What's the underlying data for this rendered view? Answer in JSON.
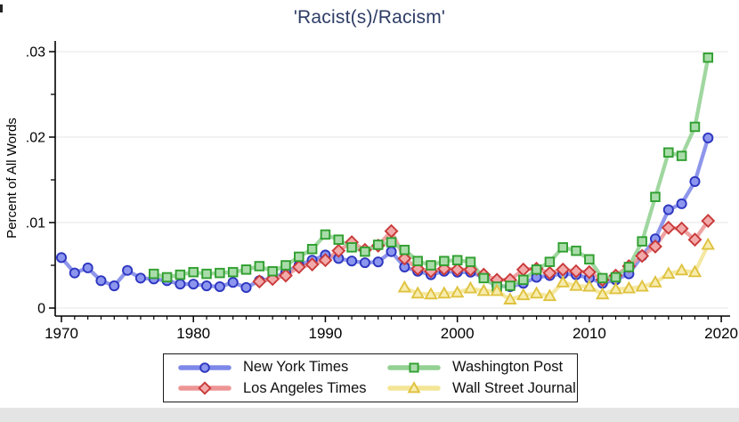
{
  "title": {
    "text": "'Racist(s)/Racism'",
    "color": "#2e3d66"
  },
  "y_axis_label": "Percent of All Words",
  "colors": {
    "title": "#2e3d66",
    "axis": "#000000",
    "gridline": "#ebebeb",
    "legend_border": "#1a1a1a",
    "background": "#ffffff",
    "bottom_strip": "#e4e4e4"
  },
  "chart_data": {
    "type": "line",
    "title": "'Racist(s)/Racism'",
    "xlabel": "",
    "ylabel": "Percent of All Words",
    "xlim": [
      1969.5,
      2020.6
    ],
    "ylim": [
      0,
      0.0313
    ],
    "x_ticks": [
      1970,
      1980,
      1990,
      2000,
      2010,
      2020
    ],
    "x_minor_tick_step": 1,
    "y_ticks": [
      0,
      0.01,
      0.02,
      0.03
    ],
    "y_tick_labels": [
      "0",
      ".01",
      ".02",
      ".03"
    ],
    "y_minor_ticks": [
      0.005,
      0.015,
      0.025
    ],
    "grid": "horizontal",
    "legend_position": "bottom",
    "series": [
      {
        "name": "New York Times",
        "marker": "circle",
        "line_color": "#7e88e8",
        "marker_fill": "#8c96ee",
        "marker_stroke": "#2d36c0",
        "start_year": 1970,
        "values": [
          0.0059,
          0.0041,
          0.0047,
          0.0032,
          0.0026,
          0.0044,
          0.0035,
          0.0034,
          0.0032,
          0.0028,
          0.0028,
          0.0026,
          0.0025,
          0.003,
          0.0024,
          0.0032,
          0.0035,
          0.0042,
          0.005,
          0.0056,
          0.0062,
          0.0058,
          0.0055,
          0.0053,
          0.0054,
          0.0066,
          0.0048,
          0.0043,
          0.0039,
          0.0043,
          0.0042,
          0.0042,
          0.0036,
          0.0026,
          0.0025,
          0.0029,
          0.0036,
          0.0038,
          0.004,
          0.0039,
          0.0035,
          0.0029,
          0.0033,
          0.004,
          0.0061,
          0.0081,
          0.0115,
          0.0122,
          0.0148,
          0.0199
        ]
      },
      {
        "name": "Los Angeles Times",
        "marker": "diamond",
        "line_color": "#ed9595",
        "marker_fill": "#f2a9a9",
        "marker_stroke": "#c93a3a",
        "start_year": 1985,
        "values": [
          0.0031,
          0.0034,
          0.0038,
          0.0048,
          0.0051,
          0.0056,
          0.0067,
          0.0077,
          0.0068,
          0.0073,
          0.009,
          0.0058,
          0.0046,
          0.0043,
          0.0046,
          0.0045,
          0.0045,
          0.0039,
          0.0033,
          0.0033,
          0.0045,
          0.0046,
          0.0041,
          0.0045,
          0.0043,
          0.0042,
          0.0033,
          0.0038,
          0.0049,
          0.0061,
          0.0072,
          0.0094,
          0.0093,
          0.008,
          0.0102
        ]
      },
      {
        "name": "Washington Post",
        "marker": "square",
        "line_color": "#93d193",
        "marker_fill": "#aadcaa",
        "marker_stroke": "#2f9f2f",
        "start_year": 1977,
        "values": [
          0.004,
          0.0036,
          0.0039,
          0.0042,
          0.004,
          0.0041,
          0.0042,
          0.0045,
          0.0049,
          0.0043,
          0.005,
          0.006,
          0.0069,
          0.0086,
          0.008,
          0.0071,
          0.0066,
          0.0074,
          0.0077,
          0.0068,
          0.0055,
          0.005,
          0.0055,
          0.0056,
          0.0054,
          0.0035,
          0.0025,
          0.0026,
          0.0033,
          0.0045,
          0.0054,
          0.0071,
          0.0067,
          0.0057,
          0.0035,
          0.0036,
          0.0048,
          0.0078,
          0.013,
          0.0182,
          0.0178,
          0.0212,
          0.0293
        ]
      },
      {
        "name": "Wall Street Journal",
        "marker": "triangle",
        "line_color": "#f4e595",
        "marker_fill": "#f7ecae",
        "marker_stroke": "#dfc23f",
        "start_year": 1996,
        "values": [
          0.0024,
          0.0017,
          0.0016,
          0.0017,
          0.0018,
          0.0023,
          0.002,
          0.002,
          0.001,
          0.0015,
          0.0017,
          0.0014,
          0.003,
          0.0026,
          0.0025,
          0.0016,
          0.0022,
          0.0023,
          0.0025,
          0.003,
          0.004,
          0.0044,
          0.0042,
          0.0074
        ]
      }
    ]
  }
}
